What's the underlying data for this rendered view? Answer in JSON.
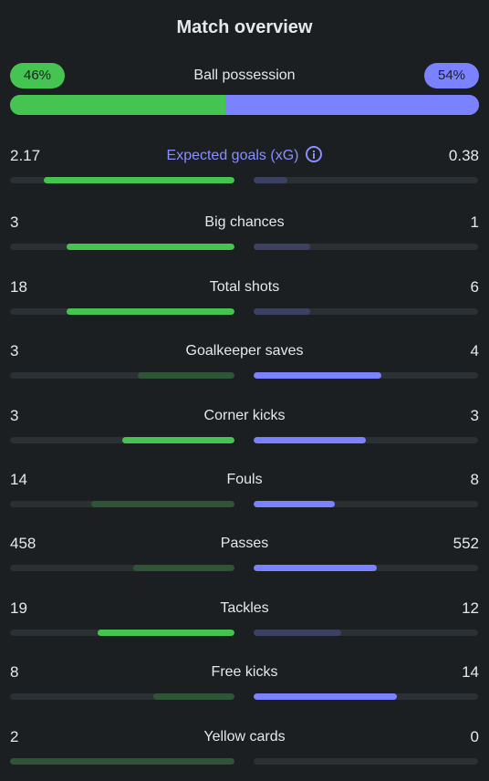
{
  "title": "Match overview",
  "possession": {
    "label": "Ball possession",
    "home": "46%",
    "away": "54%",
    "home_fraction": 0.46,
    "home_color": "#45c451",
    "away_color": "#7b82ff"
  },
  "stats": [
    {
      "label": "Expected goals (xG)",
      "home": "2.17",
      "away": "0.38",
      "home_fill": 0.85,
      "away_fill": 0.15,
      "leader": "home",
      "info_icon": "info-icon"
    },
    {
      "label": "Big chances",
      "home": "3",
      "away": "1",
      "home_fill": 0.75,
      "away_fill": 0.25,
      "leader": "home"
    },
    {
      "label": "Total shots",
      "home": "18",
      "away": "6",
      "home_fill": 0.75,
      "away_fill": 0.25,
      "leader": "home"
    },
    {
      "label": "Goalkeeper saves",
      "home": "3",
      "away": "4",
      "home_fill": 0.43,
      "away_fill": 0.57,
      "leader": "away"
    },
    {
      "label": "Corner kicks",
      "home": "3",
      "away": "3",
      "home_fill": 0.5,
      "away_fill": 0.5,
      "leader": "both"
    },
    {
      "label": "Fouls",
      "home": "14",
      "away": "8",
      "home_fill": 0.64,
      "away_fill": 0.36,
      "leader": "away"
    },
    {
      "label": "Passes",
      "home": "458",
      "away": "552",
      "home_fill": 0.45,
      "away_fill": 0.55,
      "leader": "away"
    },
    {
      "label": "Tackles",
      "home": "19",
      "away": "12",
      "home_fill": 0.61,
      "away_fill": 0.39,
      "leader": "home"
    },
    {
      "label": "Free kicks",
      "home": "8",
      "away": "14",
      "home_fill": 0.36,
      "away_fill": 0.64,
      "leader": "away"
    },
    {
      "label": "Yellow cards",
      "home": "2",
      "away": "0",
      "home_fill": 1.0,
      "away_fill": 0.0,
      "leader": "away"
    }
  ]
}
